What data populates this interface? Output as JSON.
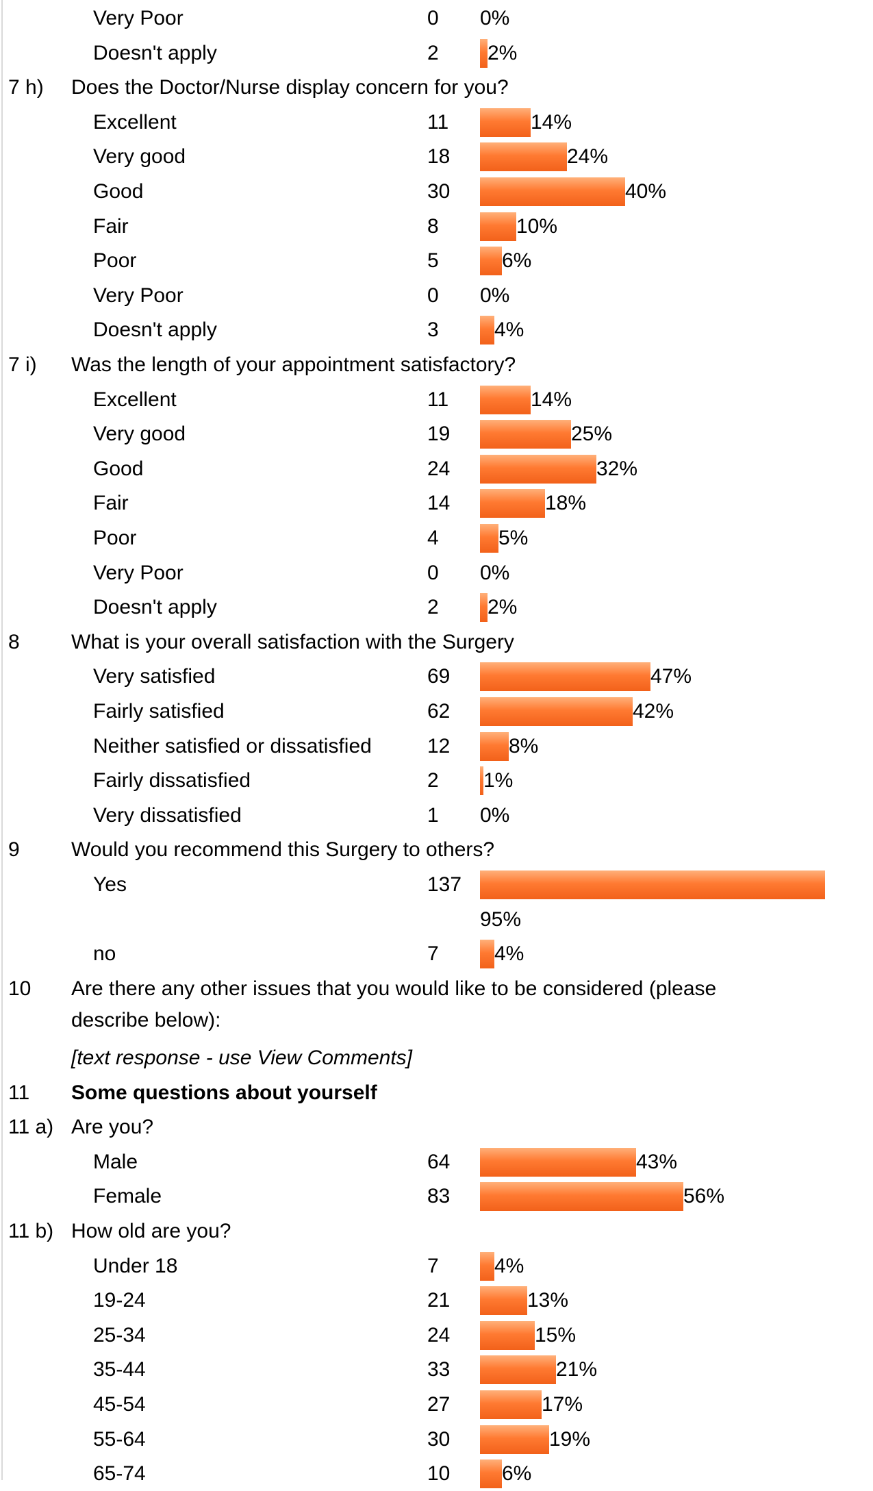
{
  "colors": {
    "bar": "#f26a21",
    "accent_line": "#d9d9d9"
  },
  "rows": [
    {
      "kind": "option",
      "label": "Very Poor",
      "count": "0",
      "pct": "0%",
      "value": 0
    },
    {
      "kind": "option",
      "label": "Doesn't apply",
      "count": "2",
      "pct": "2%",
      "value": 2
    },
    {
      "kind": "question",
      "num": "7 h)",
      "text": "Does the Doctor/Nurse display concern for you?"
    },
    {
      "kind": "option",
      "label": "Excellent",
      "count": "11",
      "pct": "14%",
      "value": 14
    },
    {
      "kind": "option",
      "label": "Very good",
      "count": "18",
      "pct": "24%",
      "value": 24
    },
    {
      "kind": "option",
      "label": "Good",
      "count": "30",
      "pct": "40%",
      "value": 40
    },
    {
      "kind": "option",
      "label": "Fair",
      "count": "8",
      "pct": "10%",
      "value": 10
    },
    {
      "kind": "option",
      "label": "Poor",
      "count": "5",
      "pct": "6%",
      "value": 6
    },
    {
      "kind": "option",
      "label": "Very Poor",
      "count": "0",
      "pct": "0%",
      "value": 0
    },
    {
      "kind": "option",
      "label": "Doesn't apply",
      "count": "3",
      "pct": "4%",
      "value": 4
    },
    {
      "kind": "question",
      "num": "7 i)",
      "text": "Was the length of your appointment satisfactory?"
    },
    {
      "kind": "option",
      "label": "Excellent",
      "count": "11",
      "pct": "14%",
      "value": 14
    },
    {
      "kind": "option",
      "label": "Very good",
      "count": "19",
      "pct": "25%",
      "value": 25
    },
    {
      "kind": "option",
      "label": "Good",
      "count": "24",
      "pct": "32%",
      "value": 32
    },
    {
      "kind": "option",
      "label": "Fair",
      "count": "14",
      "pct": "18%",
      "value": 18
    },
    {
      "kind": "option",
      "label": "Poor",
      "count": "4",
      "pct": "5%",
      "value": 5
    },
    {
      "kind": "option",
      "label": "Very Poor",
      "count": "0",
      "pct": "0%",
      "value": 0
    },
    {
      "kind": "option",
      "label": "Doesn't apply",
      "count": "2",
      "pct": "2%",
      "value": 2
    },
    {
      "kind": "question",
      "num": "8",
      "text": "What is your overall satisfaction with the Surgery"
    },
    {
      "kind": "option",
      "label": "Very satisfied",
      "count": "69",
      "pct": "47%",
      "value": 47
    },
    {
      "kind": "option",
      "label": "Fairly satisfied",
      "count": "62",
      "pct": "42%",
      "value": 42
    },
    {
      "kind": "option",
      "label": "Neither satisfied or dissatisfied",
      "count": "12",
      "pct": "8%",
      "value": 8
    },
    {
      "kind": "option",
      "label": "Fairly dissatisfied",
      "count": "2",
      "pct": "1%",
      "value": 1
    },
    {
      "kind": "option",
      "label": "Very dissatisfied",
      "count": "1",
      "pct": "0%",
      "value": 0
    },
    {
      "kind": "question",
      "num": "9",
      "text": "Would you recommend this Surgery to others?"
    },
    {
      "kind": "option",
      "label": "Yes",
      "count": "137",
      "pct": "95%",
      "value": 95,
      "wrap_pct": true
    },
    {
      "kind": "option",
      "label": "no",
      "count": "7",
      "pct": "4%",
      "value": 4
    },
    {
      "kind": "question",
      "num": "10",
      "text": "Are there any other issues that you would like to be considered (please describe below):",
      "lines": 2
    },
    {
      "kind": "note",
      "text": "[text response - use View Comments]"
    },
    {
      "kind": "question",
      "num": "11",
      "text": "Some questions about yourself",
      "bold": true
    },
    {
      "kind": "question",
      "num": "11 a)",
      "text": "Are you?"
    },
    {
      "kind": "option",
      "label": "Male",
      "count": "64",
      "pct": "43%",
      "value": 43
    },
    {
      "kind": "option",
      "label": "Female",
      "count": "83",
      "pct": "56%",
      "value": 56
    },
    {
      "kind": "question",
      "num": "11 b)",
      "text": "How old are you?"
    },
    {
      "kind": "option",
      "label": "Under 18",
      "count": "7",
      "pct": "4%",
      "value": 4
    },
    {
      "kind": "option",
      "label": "19-24",
      "count": "21",
      "pct": "13%",
      "value": 13
    },
    {
      "kind": "option",
      "label": "25-34",
      "count": "24",
      "pct": "15%",
      "value": 15
    },
    {
      "kind": "option",
      "label": "35-44",
      "count": "33",
      "pct": "21%",
      "value": 21
    },
    {
      "kind": "option",
      "label": "45-54",
      "count": "27",
      "pct": "17%",
      "value": 17
    },
    {
      "kind": "option",
      "label": "55-64",
      "count": "30",
      "pct": "19%",
      "value": 19
    },
    {
      "kind": "option",
      "label": "65-74",
      "count": "10",
      "pct": "6%",
      "value": 6
    }
  ]
}
